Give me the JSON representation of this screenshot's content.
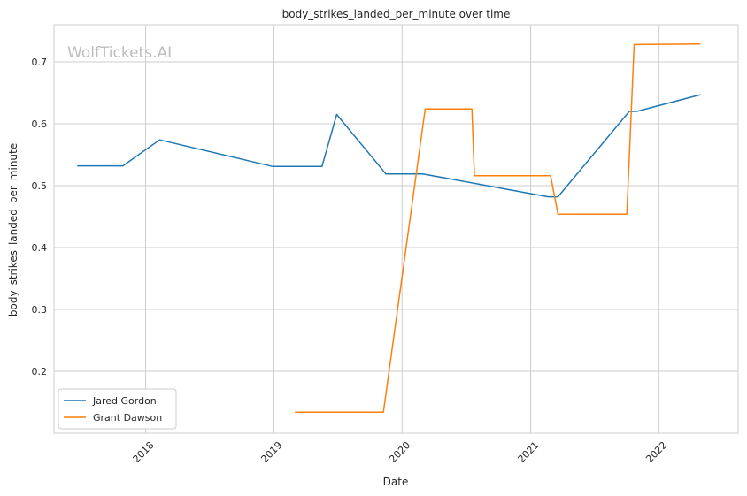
{
  "chart_data": {
    "type": "line",
    "title": "body_strikes_landed_per_minute over time",
    "xlabel": "Date",
    "ylabel": "body_strikes_landed_per_minute",
    "watermark": "WolfTickets.AI",
    "x_type": "date",
    "xlim": [
      "2017-04-15",
      "2022-08-15"
    ],
    "ylim": [
      0.1,
      0.76
    ],
    "x_ticks": [
      {
        "date": "2018-01-01",
        "label": "2018"
      },
      {
        "date": "2019-01-01",
        "label": "2019"
      },
      {
        "date": "2020-01-01",
        "label": "2020"
      },
      {
        "date": "2021-01-01",
        "label": "2021"
      },
      {
        "date": "2022-01-01",
        "label": "2022"
      }
    ],
    "y_ticks": [
      0.2,
      0.3,
      0.4,
      0.5,
      0.6,
      0.7
    ],
    "grid": true,
    "legend_position": "lower-left",
    "series": [
      {
        "name": "Jared Gordon",
        "color": "#1f77b4",
        "points": [
          {
            "x": "2017-06-20",
            "y": 0.532
          },
          {
            "x": "2017-10-28",
            "y": 0.532
          },
          {
            "x": "2018-02-10",
            "y": 0.574
          },
          {
            "x": "2018-12-29",
            "y": 0.531
          },
          {
            "x": "2019-05-18",
            "y": 0.531
          },
          {
            "x": "2019-06-29",
            "y": 0.615
          },
          {
            "x": "2019-11-16",
            "y": 0.519
          },
          {
            "x": "2020-02-29",
            "y": 0.519
          },
          {
            "x": "2021-02-20",
            "y": 0.482
          },
          {
            "x": "2021-03-20",
            "y": 0.482
          },
          {
            "x": "2021-10-09",
            "y": 0.62
          },
          {
            "x": "2021-10-30",
            "y": 0.62
          },
          {
            "x": "2022-04-30",
            "y": 0.647
          }
        ]
      },
      {
        "name": "Grant Dawson",
        "color": "#ff7f0e",
        "points": [
          {
            "x": "2019-03-02",
            "y": 0.134
          },
          {
            "x": "2019-11-09",
            "y": 0.134
          },
          {
            "x": "2020-03-07",
            "y": 0.624
          },
          {
            "x": "2020-07-18",
            "y": 0.624
          },
          {
            "x": "2020-07-25",
            "y": 0.516
          },
          {
            "x": "2021-02-27",
            "y": 0.516
          },
          {
            "x": "2021-03-20",
            "y": 0.454
          },
          {
            "x": "2021-10-02",
            "y": 0.454
          },
          {
            "x": "2021-10-23",
            "y": 0.728
          },
          {
            "x": "2022-04-30",
            "y": 0.729
          }
        ]
      }
    ]
  }
}
